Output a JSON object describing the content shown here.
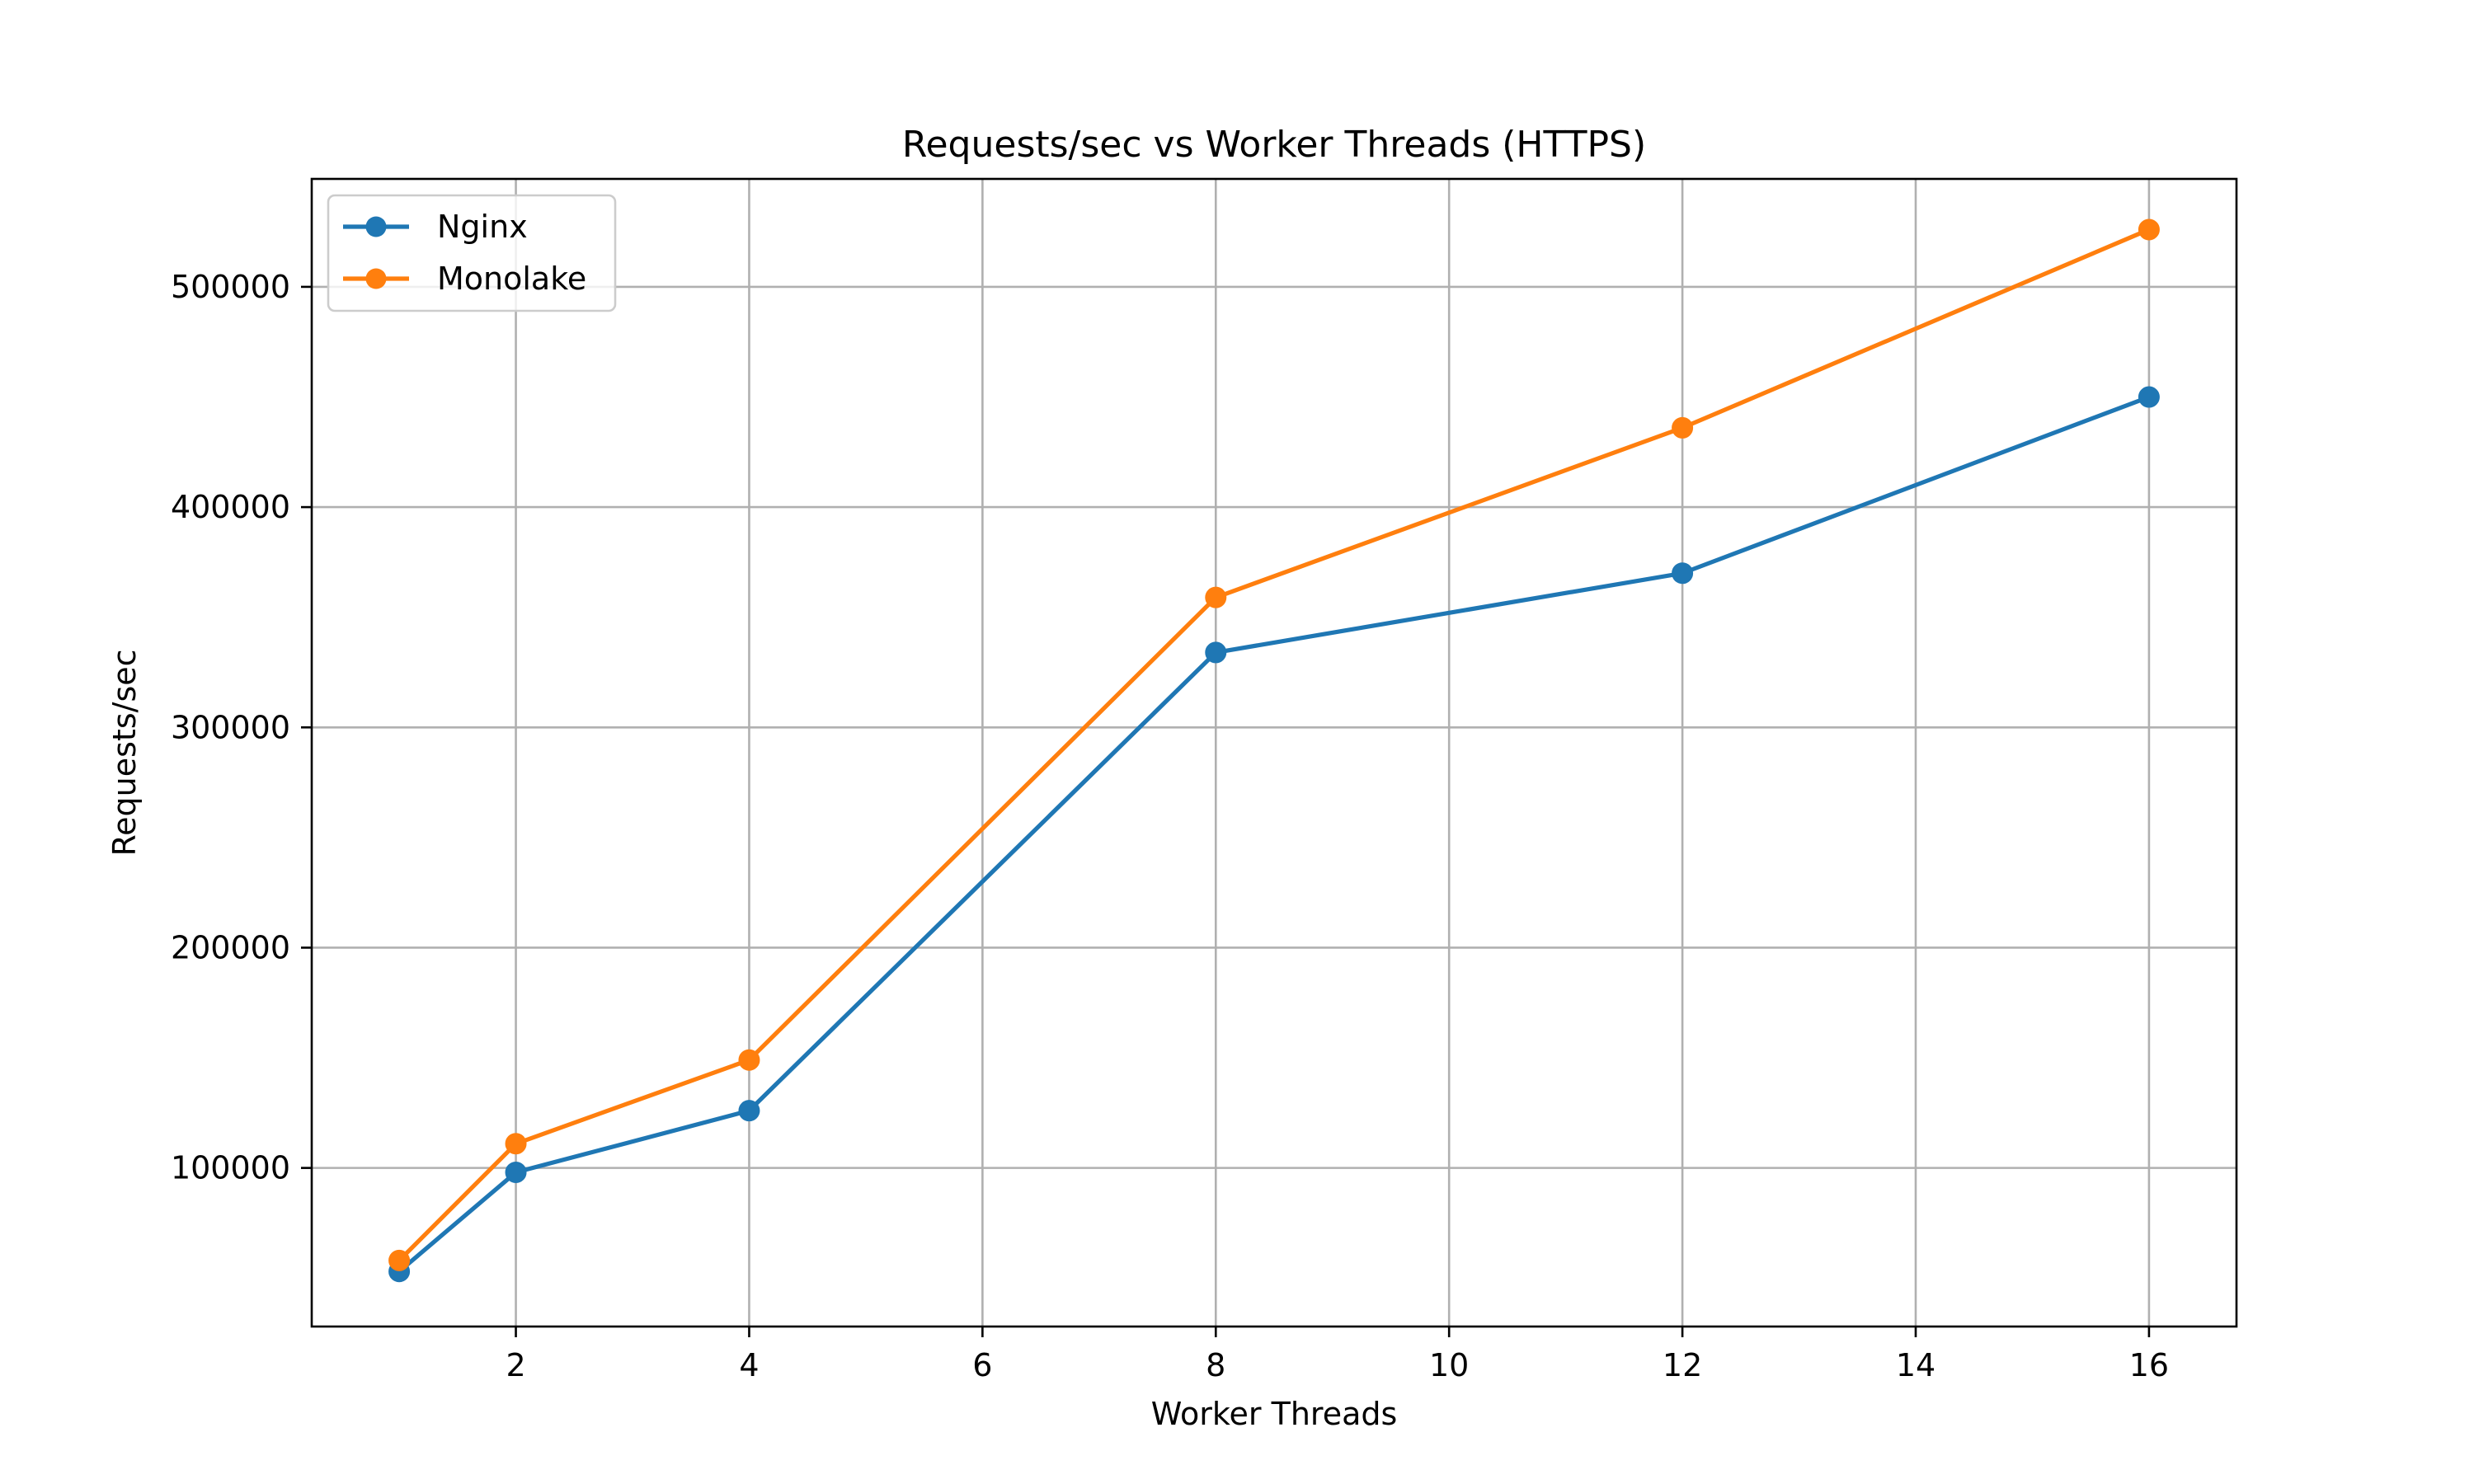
{
  "chart_data": {
    "type": "line",
    "title": "Requests/sec vs Worker Threads (HTTPS)",
    "xlabel": "Worker Threads",
    "ylabel": "Requests/sec",
    "x": [
      1,
      2,
      4,
      8,
      12,
      16
    ],
    "xlim": [
      0.25,
      16.75
    ],
    "ylim": [
      28000,
      549000
    ],
    "xticks": [
      2,
      4,
      6,
      8,
      10,
      12,
      14,
      16
    ],
    "yticks": [
      100000,
      200000,
      300000,
      400000,
      500000
    ],
    "grid": true,
    "legend_position": "upper-left",
    "series": [
      {
        "name": "Nginx",
        "color": "#1f77b4",
        "marker": "circle",
        "values": [
          53000,
          98000,
          126000,
          334000,
          370000,
          450000
        ]
      },
      {
        "name": "Monolake",
        "color": "#ff7f0e",
        "marker": "circle",
        "values": [
          58000,
          111000,
          149000,
          359000,
          436000,
          526000
        ]
      }
    ]
  }
}
